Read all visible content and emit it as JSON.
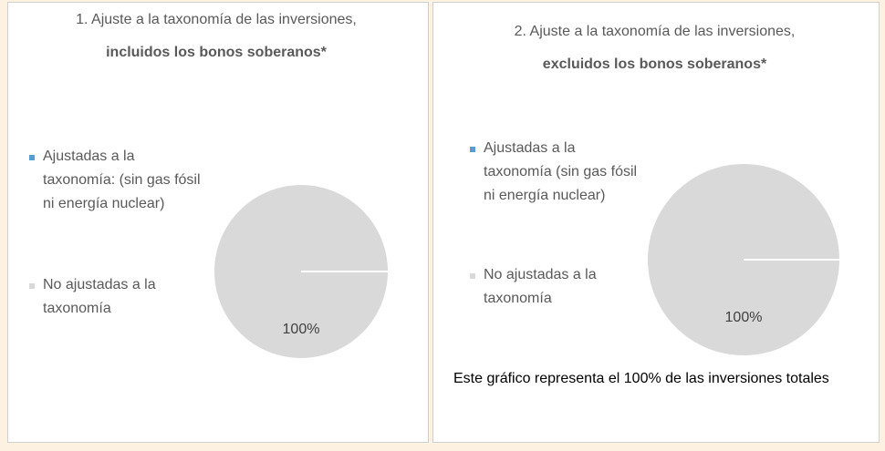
{
  "chart_data": [
    {
      "type": "pie",
      "title": "1. Ajuste a la taxonomía de las inversiones, ",
      "title_bold": "incluidos los bonos soberanos*",
      "categories": [
        "Ajustadas a la taxonomía: (sin gas fósil ni energía nuclear)",
        "No ajustadas a la taxonomía"
      ],
      "values": [
        0,
        100
      ],
      "value_labels": [
        null,
        "100%"
      ],
      "colors": [
        "#5b9bd5",
        "#d9d9d9"
      ]
    },
    {
      "type": "pie",
      "title": "2. Ajuste a la taxonomía de las inversiones, ",
      "title_bold": "excluidos los bonos soberanos*",
      "categories": [
        "Ajustadas a la taxonomía (sin gas fósil ni energía nuclear)",
        "No ajustadas a la taxonomía"
      ],
      "values": [
        0,
        100
      ],
      "value_labels": [
        null,
        "100%"
      ],
      "colors": [
        "#5b9bd5",
        "#d9d9d9"
      ]
    }
  ],
  "note": "Este gráfico representa el 100% de las inversiones totales"
}
